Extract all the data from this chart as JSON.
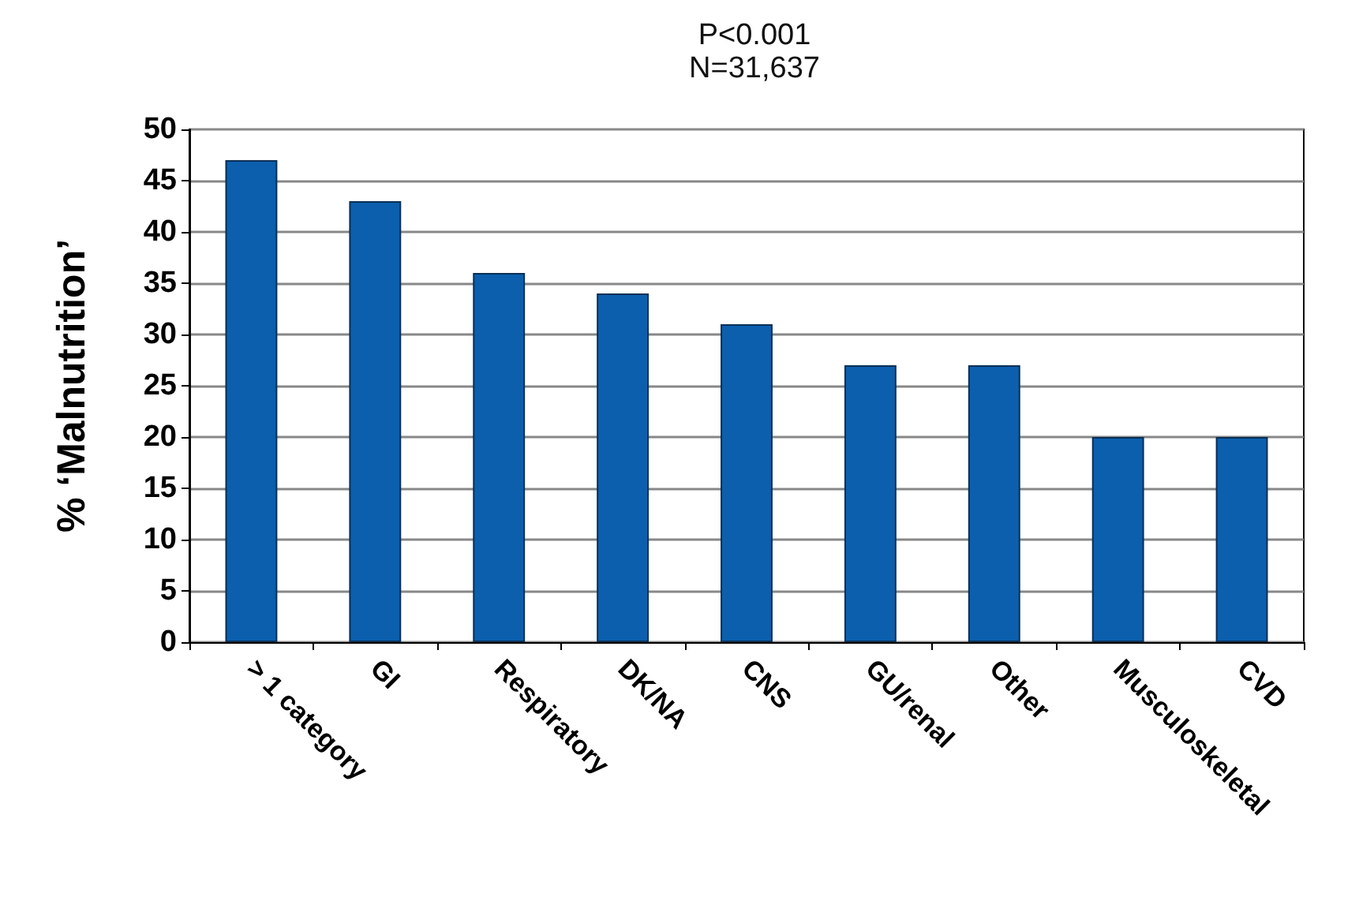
{
  "chart_data": {
    "type": "bar",
    "title": "P<0.001",
    "subtitle": "N=31,637",
    "ylabel": "% ‘Malnutrition’",
    "categories": [
      "> 1 category",
      "GI",
      "Respiratory",
      "DK/NA",
      "CNS",
      "GU/renal",
      "Other",
      "Musculoskeletal",
      "CVD"
    ],
    "values": [
      47,
      43,
      36,
      34,
      31,
      27,
      27,
      20,
      20
    ],
    "color": "#0b5fad",
    "ylim": [
      0,
      50
    ],
    "yticks": [
      0,
      5,
      10,
      15,
      20,
      25,
      30,
      35,
      40,
      45,
      50
    ],
    "grid": "y"
  }
}
